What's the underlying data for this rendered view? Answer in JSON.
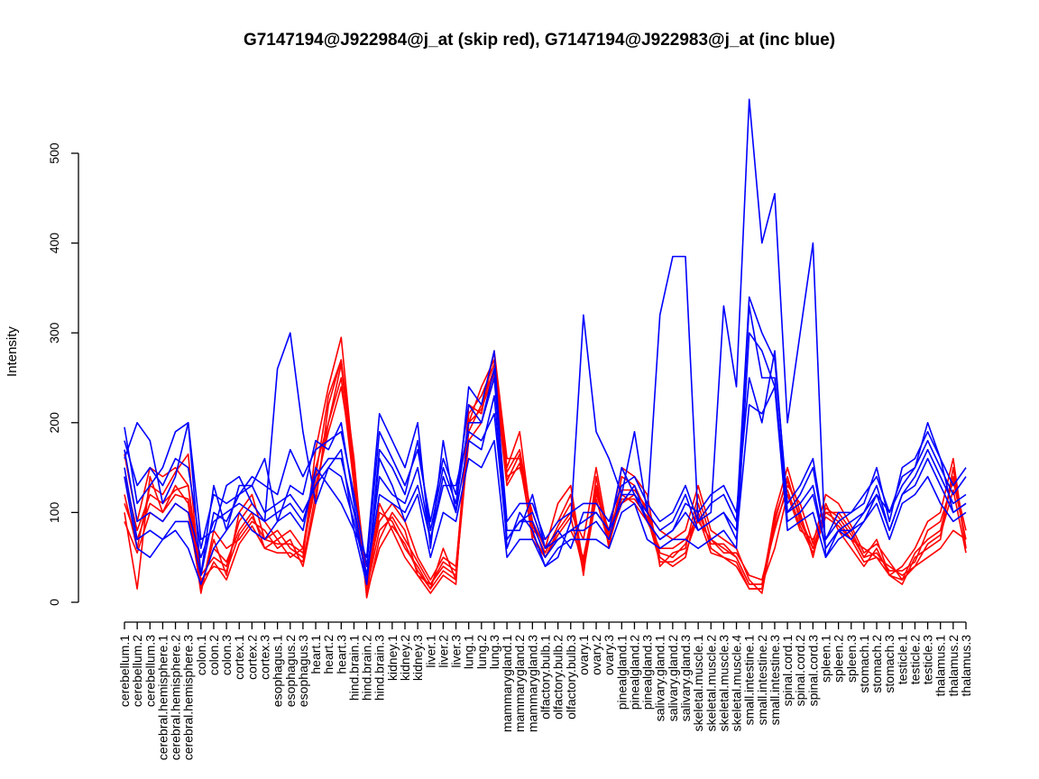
{
  "chart_data": {
    "type": "line",
    "title": "G7147194@J922984@j_at (skip red), G7147194@J922983@j_at (inc blue)",
    "xlabel": "",
    "ylabel": "Intensity",
    "ylim": [
      0,
      570
    ],
    "yticks": [
      0,
      100,
      200,
      300,
      400,
      500
    ],
    "categories": [
      "cerebellum.1",
      "cerebellum.2",
      "cerebellum.3",
      "cerebral.hemisphere.1",
      "cerebral.hemisphere.2",
      "cerebral.hemisphere.3",
      "colon.1",
      "colon.2",
      "colon.3",
      "cortex.1",
      "cortex.2",
      "cortex.3",
      "esophagus.1",
      "esophagus.2",
      "esophagus.3",
      "heart.1",
      "heart.2",
      "heart.3",
      "hind.brain.1",
      "hind.brain.2",
      "hind.brain.3",
      "kidney.1",
      "kidney.2",
      "kidney.3",
      "liver.1",
      "liver.2",
      "liver.3",
      "lung.1",
      "lung.2",
      "lung.3",
      "mammarygland.1",
      "mammarygland.2",
      "mammarygland.3",
      "olfactory.bulb.1",
      "olfactory.bulb.2",
      "olfactory.bulb.3",
      "ovary.1",
      "ovary.2",
      "ovary.3",
      "pinealgland.1",
      "pinealgland.2",
      "pinealgland.3",
      "salivary.gland.1",
      "salivary.gland.2",
      "salivary.gland.3",
      "skeletal.muscle.1",
      "skeletal.muscle.2",
      "skeletal.muscle.3",
      "skeletal.muscle.4",
      "small.intestine.1",
      "small.intestine.2",
      "small.intestine.3",
      "spinal.cord.1",
      "spinal.cord.2",
      "spinal.cord.3",
      "spleen.1",
      "spleen.2",
      "spleen.3",
      "stomach.1",
      "stomach.2",
      "stomach.3",
      "testicle.1",
      "testicle.2",
      "testicle.3",
      "thalamus.1",
      "thalamus.2",
      "thalamus.3"
    ],
    "series_colors": {
      "skip": "#ff0000",
      "inc": "#0000ff"
    },
    "series": [
      {
        "name": "skip 1",
        "group": "skip",
        "values": [
          165,
          90,
          150,
          140,
          150,
          130,
          20,
          60,
          45,
          80,
          100,
          60,
          70,
          50,
          60,
          150,
          200,
          265,
          140,
          20,
          110,
          80,
          50,
          30,
          20,
          40,
          30,
          180,
          200,
          250,
          140,
          150,
          100,
          60,
          70,
          80,
          50,
          120,
          80,
          120,
          110,
          90,
          60,
          60,
          70,
          90,
          70,
          60,
          50,
          20,
          20,
          60,
          120,
          80,
          70,
          100,
          90,
          70,
          60,
          50,
          40,
          30,
          40,
          50,
          60,
          80,
          70
        ]
      },
      {
        "name": "skip 2",
        "group": "skip",
        "values": [
          120,
          60,
          130,
          120,
          145,
          165,
          15,
          70,
          30,
          100,
          120,
          70,
          80,
          60,
          50,
          170,
          240,
          295,
          150,
          10,
          100,
          90,
          60,
          40,
          15,
          60,
          25,
          200,
          240,
          270,
          150,
          190,
          80,
          70,
          90,
          120,
          30,
          140,
          60,
          140,
          130,
          100,
          50,
          40,
          50,
          110,
          60,
          50,
          45,
          15,
          15,
          100,
          150,
          100,
          50,
          110,
          80,
          60,
          40,
          60,
          30,
          20,
          50,
          60,
          70,
          150,
          60
        ]
      },
      {
        "name": "skip 3",
        "group": "skip",
        "values": [
          100,
          15,
          140,
          100,
          130,
          110,
          10,
          80,
          60,
          70,
          90,
          80,
          60,
          70,
          40,
          110,
          220,
          270,
          160,
          5,
          70,
          100,
          80,
          30,
          10,
          30,
          20,
          220,
          210,
          280,
          160,
          160,
          70,
          50,
          80,
          100,
          70,
          150,
          70,
          110,
          120,
          100,
          80,
          70,
          80,
          130,
          80,
          70,
          60,
          25,
          10,
          90,
          140,
          90,
          60,
          100,
          100,
          80,
          50,
          70,
          30,
          40,
          60,
          90,
          100,
          160,
          60
        ]
      },
      {
        "name": "skip 4",
        "group": "skip",
        "values": [
          140,
          80,
          120,
          110,
          125,
          130,
          30,
          50,
          40,
          90,
          110,
          90,
          70,
          80,
          60,
          130,
          190,
          240,
          150,
          25,
          90,
          110,
          90,
          50,
          25,
          50,
          40,
          190,
          220,
          260,
          145,
          170,
          90,
          60,
          110,
          130,
          40,
          130,
          75,
          150,
          140,
          120,
          40,
          55,
          60,
          120,
          70,
          55,
          55,
          30,
          25,
          80,
          130,
          110,
          65,
          120,
          110,
          85,
          55,
          65,
          45,
          25,
          55,
          70,
          80,
          140,
          80
        ]
      },
      {
        "name": "skip 5",
        "group": "skip",
        "values": [
          110,
          70,
          110,
          100,
          120,
          115,
          25,
          40,
          35,
          75,
          95,
          70,
          65,
          65,
          55,
          140,
          230,
          270,
          145,
          15,
          80,
          95,
          70,
          45,
          20,
          45,
          35,
          210,
          230,
          265,
          135,
          165,
          85,
          55,
          85,
          110,
          45,
          125,
          70,
          125,
          125,
          105,
          55,
          50,
          65,
          100,
          65,
          65,
          50,
          20,
          20,
          95,
          135,
          95,
          60,
          105,
          95,
          75,
          50,
          55,
          35,
          35,
          45,
          80,
          90,
          135,
          70
        ]
      },
      {
        "name": "skip 6",
        "group": "skip",
        "values": [
          90,
          55,
          100,
          90,
          110,
          100,
          15,
          45,
          25,
          65,
          85,
          60,
          55,
          55,
          45,
          120,
          200,
          250,
          130,
          10,
          60,
          85,
          65,
          35,
          15,
          35,
          25,
          200,
          215,
          255,
          130,
          155,
          75,
          50,
          75,
          95,
          35,
          115,
          65,
          115,
          115,
          95,
          45,
          45,
          55,
          95,
          55,
          50,
          40,
          15,
          15,
          85,
          125,
          85,
          55,
          95,
          85,
          70,
          45,
          50,
          30,
          25,
          40,
          65,
          75,
          125,
          55
        ]
      },
      {
        "name": "inc 1",
        "group": "inc",
        "values": [
          195,
          110,
          130,
          150,
          190,
          200,
          70,
          80,
          130,
          140,
          110,
          90,
          260,
          300,
          190,
          110,
          150,
          170,
          80,
          50,
          210,
          180,
          150,
          200,
          60,
          180,
          100,
          240,
          220,
          280,
          60,
          100,
          80,
          40,
          50,
          90,
          320,
          190,
          160,
          120,
          190,
          100,
          320,
          385,
          385,
          90,
          100,
          330,
          240,
          560,
          400,
          455,
          200,
          300,
          400,
          50,
          80,
          70,
          90,
          120,
          100,
          140,
          150,
          200,
          160,
          100,
          110
        ]
      },
      {
        "name": "inc 2",
        "group": "inc",
        "values": [
          160,
          200,
          180,
          110,
          140,
          200,
          30,
          130,
          80,
          130,
          130,
          160,
          90,
          130,
          120,
          180,
          170,
          200,
          110,
          20,
          170,
          150,
          120,
          180,
          80,
          150,
          110,
          200,
          200,
          250,
          80,
          80,
          120,
          60,
          80,
          60,
          100,
          100,
          80,
          110,
          130,
          90,
          70,
          80,
          110,
          100,
          120,
          130,
          100,
          250,
          200,
          280,
          100,
          120,
          150,
          70,
          90,
          100,
          120,
          140,
          100,
          130,
          150,
          180,
          150,
          120,
          140
        ]
      },
      {
        "name": "inc 3",
        "group": "inc",
        "values": [
          150,
          70,
          80,
          70,
          90,
          90,
          30,
          100,
          90,
          120,
          130,
          100,
          110,
          120,
          100,
          130,
          150,
          140,
          90,
          30,
          120,
          110,
          100,
          130,
          70,
          130,
          130,
          190,
          180,
          210,
          70,
          90,
          100,
          60,
          70,
          80,
          90,
          100,
          80,
          150,
          120,
          100,
          80,
          90,
          120,
          80,
          90,
          100,
          80,
          330,
          250,
          250,
          90,
          100,
          120,
          60,
          80,
          90,
          100,
          130,
          80,
          120,
          130,
          160,
          130,
          100,
          110
        ]
      },
      {
        "name": "inc 4",
        "group": "inc",
        "values": [
          140,
          60,
          50,
          70,
          80,
          60,
          20,
          60,
          80,
          100,
          80,
          70,
          90,
          100,
          80,
          150,
          130,
          110,
          80,
          20,
          160,
          130,
          90,
          120,
          50,
          100,
          90,
          160,
          150,
          180,
          50,
          70,
          70,
          40,
          60,
          70,
          70,
          70,
          60,
          100,
          110,
          70,
          60,
          70,
          70,
          60,
          70,
          80,
          60,
          300,
          280,
          240,
          80,
          90,
          100,
          50,
          70,
          80,
          90,
          110,
          70,
          110,
          120,
          140,
          110,
          90,
          100
        ]
      },
      {
        "name": "inc 5",
        "group": "inc",
        "values": [
          180,
          130,
          150,
          130,
          160,
          150,
          60,
          120,
          110,
          120,
          140,
          130,
          120,
          170,
          140,
          170,
          180,
          190,
          120,
          40,
          190,
          160,
          130,
          170,
          90,
          160,
          120,
          220,
          200,
          260,
          90,
          110,
          110,
          70,
          90,
          100,
          110,
          110,
          90,
          130,
          140,
          110,
          90,
          100,
          130,
          90,
          110,
          120,
          90,
          340,
          300,
          270,
          110,
          130,
          160,
          70,
          100,
          100,
          110,
          150,
          90,
          150,
          160,
          190,
          160,
          130,
          150
        ]
      },
      {
        "name": "inc 6",
        "group": "inc",
        "values": [
          170,
          90,
          100,
          90,
          110,
          100,
          50,
          90,
          100,
          110,
          100,
          90,
          100,
          110,
          90,
          140,
          160,
          160,
          100,
          30,
          140,
          120,
          110,
          150,
          70,
          140,
          100,
          180,
          170,
          230,
          70,
          90,
          90,
          50,
          70,
          80,
          80,
          90,
          70,
          120,
          120,
          90,
          70,
          80,
          100,
          80,
          90,
          100,
          70,
          220,
          210,
          240,
          100,
          110,
          130,
          60,
          80,
          80,
          100,
          120,
          80,
          120,
          140,
          170,
          140,
          110,
          120
        ]
      }
    ]
  }
}
